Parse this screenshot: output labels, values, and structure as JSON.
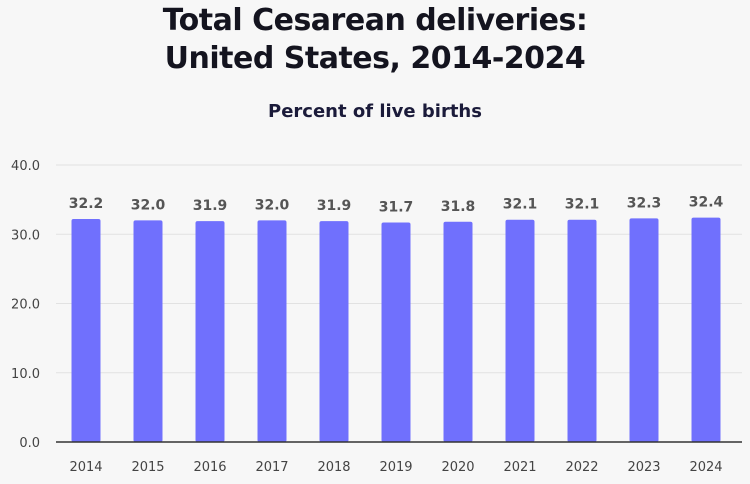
{
  "chart_data": {
    "type": "bar",
    "title_lines": [
      "Total Cesarean deliveries:",
      "United States, 2014-2024"
    ],
    "subtitle": "Percent of live births",
    "categories": [
      "2014",
      "2015",
      "2016",
      "2017",
      "2018",
      "2019",
      "2020",
      "2021",
      "2022",
      "2023",
      "2024"
    ],
    "values": [
      32.2,
      32.0,
      31.9,
      32.0,
      31.9,
      31.7,
      31.8,
      32.1,
      32.1,
      32.3,
      32.4
    ],
    "value_labels": [
      "32.2",
      "32.0",
      "31.9",
      "32.0",
      "31.9",
      "31.7",
      "31.8",
      "32.1",
      "32.1",
      "32.3",
      "32.4"
    ],
    "ylim": [
      0,
      40
    ],
    "yticks": [
      "0.0",
      "10.0",
      "20.0",
      "30.0",
      "40.0"
    ],
    "grid": true,
    "bar_color": "#7070fd",
    "xlabel": "",
    "ylabel": ""
  }
}
